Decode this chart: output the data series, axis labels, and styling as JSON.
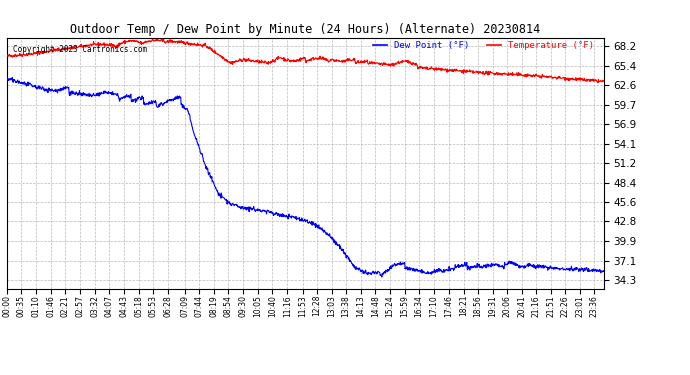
{
  "title": "Outdoor Temp / Dew Point by Minute (24 Hours) (Alternate) 20230814",
  "copyright_text": "Copyright 2023 Cartronics.com",
  "legend_dew": "Dew Point (°F)",
  "legend_temp": "Temperature (°F)",
  "yticks": [
    34.3,
    37.1,
    39.9,
    42.8,
    45.6,
    48.4,
    51.2,
    54.1,
    56.9,
    59.7,
    62.6,
    65.4,
    68.2
  ],
  "ylim": [
    33.0,
    69.5
  ],
  "background_color": "#ffffff",
  "grid_color": "#aaaaaa",
  "temp_color": "#ff0000",
  "dew_color": "#0000ff",
  "title_color": "#000000",
  "copyright_color": "#000000",
  "tick_label_color": "#000000",
  "xtick_labels": [
    "00:00",
    "00:35",
    "01:10",
    "01:46",
    "02:21",
    "02:57",
    "03:32",
    "04:07",
    "04:43",
    "05:18",
    "05:53",
    "06:28",
    "07:09",
    "07:44",
    "08:19",
    "08:54",
    "09:30",
    "10:05",
    "10:40",
    "11:16",
    "11:53",
    "12:28",
    "13:03",
    "13:38",
    "14:13",
    "14:48",
    "15:24",
    "15:59",
    "16:34",
    "17:10",
    "17:46",
    "18:21",
    "18:56",
    "19:31",
    "20:06",
    "20:41",
    "21:16",
    "21:51",
    "22:26",
    "23:01",
    "23:36"
  ]
}
